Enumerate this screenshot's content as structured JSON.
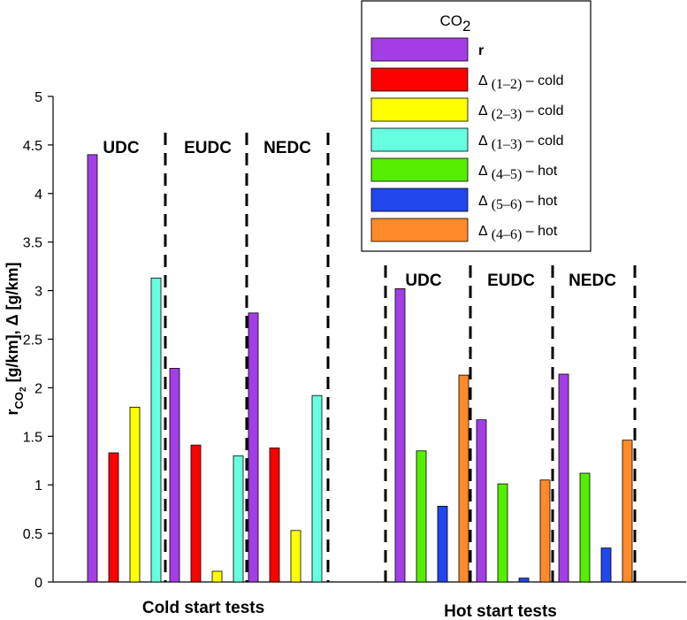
{
  "chart_data": {
    "type": "bar",
    "ylabel": "r_CO2 [g/km], Δ [g/km]",
    "ylabel_parts": {
      "r": "r",
      "sub": "CO",
      "subsub": "2",
      "rest": " [g/km], Δ [g/km]"
    },
    "ylim": [
      0,
      5
    ],
    "yticks": [
      "0",
      "0.5",
      "1",
      "1.5",
      "2",
      "2.5",
      "3",
      "3.5",
      "4",
      "4.5",
      "5"
    ],
    "grid": false,
    "legend": {
      "title": "CO",
      "title_sub": "2",
      "placement": "top-right",
      "entries": [
        {
          "key": "r",
          "label": "r",
          "sub": "",
          "suffix": "",
          "bold": true,
          "color": "#a33ee6"
        },
        {
          "key": "d12c",
          "label": "Δ",
          "sub": "(1–2)",
          "suffix": " – cold",
          "bold": false,
          "color": "#ff0000"
        },
        {
          "key": "d23c",
          "label": "Δ",
          "sub": "(2–3)",
          "suffix": " – cold",
          "bold": false,
          "color": "#ffff00"
        },
        {
          "key": "d13c",
          "label": "Δ",
          "sub": "(1–3)",
          "suffix": " – cold",
          "bold": false,
          "color": "#66ffe0"
        },
        {
          "key": "d45h",
          "label": "Δ",
          "sub": "(4–5)",
          "suffix": " – hot",
          "bold": false,
          "color": "#55ee00"
        },
        {
          "key": "d56h",
          "label": "Δ",
          "sub": "(5–6)",
          "suffix": " – hot",
          "bold": false,
          "color": "#2247ee"
        },
        {
          "key": "d46h",
          "label": "Δ",
          "sub": "(4–6)",
          "suffix": " – hot",
          "bold": false,
          "color": "#ff8a2a"
        }
      ]
    },
    "sections": [
      {
        "label": "Cold start tests",
        "groups": [
          {
            "label": "UDC",
            "bars": [
              {
                "series": "r",
                "value": 4.4
              },
              {
                "series": "d12c",
                "value": 1.33
              },
              {
                "series": "d23c",
                "value": 1.8
              },
              {
                "series": "d13c",
                "value": 3.13
              }
            ]
          },
          {
            "label": "EUDC",
            "bars": [
              {
                "series": "r",
                "value": 2.2
              },
              {
                "series": "d12c",
                "value": 1.41
              },
              {
                "series": "d23c",
                "value": 0.11
              },
              {
                "series": "d13c",
                "value": 1.3
              }
            ]
          },
          {
            "label": "NEDC",
            "bars": [
              {
                "series": "r",
                "value": 2.77
              },
              {
                "series": "d12c",
                "value": 1.38
              },
              {
                "series": "d23c",
                "value": 0.53
              },
              {
                "series": "d13c",
                "value": 1.92
              }
            ]
          }
        ]
      },
      {
        "label": "Hot start tests",
        "groups": [
          {
            "label": "UDC",
            "bars": [
              {
                "series": "r",
                "value": 3.02
              },
              {
                "series": "d45h",
                "value": 1.35
              },
              {
                "series": "d56h",
                "value": 0.78
              },
              {
                "series": "d46h",
                "value": 2.13
              }
            ]
          },
          {
            "label": "EUDC",
            "bars": [
              {
                "series": "r",
                "value": 1.67
              },
              {
                "series": "d45h",
                "value": 1.01
              },
              {
                "series": "d56h",
                "value": 0.04
              },
              {
                "series": "d46h",
                "value": 1.05
              }
            ]
          },
          {
            "label": "NEDC",
            "bars": [
              {
                "series": "r",
                "value": 2.14
              },
              {
                "series": "d45h",
                "value": 1.12
              },
              {
                "series": "d56h",
                "value": 0.35
              },
              {
                "series": "d46h",
                "value": 1.46
              }
            ]
          }
        ]
      }
    ]
  }
}
